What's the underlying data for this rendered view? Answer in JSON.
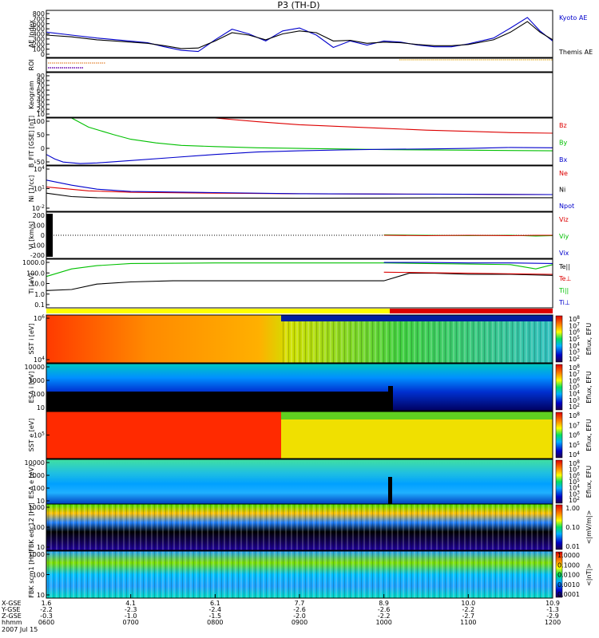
{
  "title": "P3 (TH-D)",
  "colors": {
    "blue": "#0000cc",
    "red": "#dd0000",
    "green": "#00c000",
    "black": "#000000",
    "yellow": "#ffff00"
  },
  "chart_data": {
    "type": "line",
    "panels": [
      {
        "key": "ae",
        "ylabel": "AE Index",
        "yticks": [
          "800",
          "700",
          "600",
          "500",
          "400",
          "300",
          "200",
          "100",
          "0"
        ],
        "ylim": [
          0,
          800
        ],
        "legend": [
          {
            "label": "Kyoto AE",
            "color": "#0000cc"
          },
          {
            "label": "Themis AE",
            "color": "#000000"
          }
        ],
        "series": [
          {
            "color": "#0000cc",
            "x": [
              0.0,
              0.3,
              0.6,
              0.9,
              1.2,
              1.4,
              1.6,
              1.8,
              2.0,
              2.2,
              2.4,
              2.6,
              2.8,
              3.0,
              3.2,
              3.4,
              3.6,
              3.8,
              4.0,
              4.2,
              4.4,
              4.6,
              4.8,
              5.0,
              5.3,
              5.5,
              5.7,
              5.85,
              6.0
            ],
            "y": [
              430,
              380,
              330,
              290,
              250,
              180,
              120,
              100,
              300,
              480,
              400,
              280,
              450,
              500,
              380,
              170,
              280,
              210,
              280,
              260,
              210,
              180,
              180,
              230,
              330,
              500,
              680,
              450,
              280
            ]
          },
          {
            "color": "#000000",
            "x": [
              0.0,
              0.3,
              0.6,
              0.9,
              1.2,
              1.4,
              1.6,
              1.8,
              2.0,
              2.2,
              2.4,
              2.6,
              2.8,
              3.0,
              3.2,
              3.4,
              3.6,
              3.8,
              4.0,
              4.2,
              4.4,
              4.6,
              4.8,
              5.0,
              5.3,
              5.5,
              5.7,
              5.85,
              6.0
            ],
            "y": [
              380,
              350,
              300,
              270,
              240,
              200,
              150,
              160,
              280,
              420,
              380,
              300,
              400,
              450,
              420,
              280,
              290,
              240,
              260,
              250,
              220,
              200,
              200,
              220,
              300,
              430,
              610,
              430,
              300
            ]
          }
        ]
      },
      {
        "key": "roi",
        "ylabel": "ROI",
        "yticks": [],
        "ylim": [
          0,
          1
        ]
      },
      {
        "key": "keogram",
        "ylabel": "Keogram",
        "yticks": [
          "90",
          "80",
          "70",
          "60",
          "50",
          "40",
          "30",
          "20",
          "10"
        ],
        "ylim": [
          10,
          90
        ]
      },
      {
        "key": "bfit",
        "ylabel": "B_FIT [GSE] [nT]",
        "yticks": [
          "100",
          "50",
          "0",
          "-50"
        ],
        "ylim": [
          -55,
          100
        ],
        "legend": [
          {
            "label": "Bz",
            "color": "#dd0000"
          },
          {
            "label": "By",
            "color": "#00c000"
          },
          {
            "label": "Bx",
            "color": "#0000cc"
          }
        ],
        "series": [
          {
            "color": "#dd0000",
            "x": [
              2.0,
              2.5,
              3.0,
              3.5,
              4.0,
              4.5,
              5.0,
              5.5,
              6.0
            ],
            "y": [
              100,
              88,
              78,
              72,
              66,
              60,
              56,
              52,
              50
            ]
          },
          {
            "color": "#00c000",
            "x": [
              0.3,
              0.5,
              0.8,
              1.0,
              1.3,
              1.6,
              2.0,
              2.5,
              3.0,
              3.5,
              4.0,
              5.0,
              6.0
            ],
            "y": [
              100,
              70,
              45,
              30,
              18,
              10,
              6,
              2,
              0,
              -2,
              -4,
              -6,
              -8
            ]
          },
          {
            "color": "#0000cc",
            "x": [
              0.0,
              0.1,
              0.2,
              0.4,
              0.6,
              1.0,
              1.5,
              2.0,
              2.5,
              3.0,
              3.5,
              4.0,
              4.5,
              5.0,
              5.5,
              6.0
            ],
            "y": [
              -20,
              -35,
              -45,
              -50,
              -48,
              -40,
              -30,
              -20,
              -12,
              -8,
              -5,
              -3,
              -2,
              0,
              3,
              2
            ]
          }
        ]
      },
      {
        "key": "ni",
        "ylabel": "Ni [1/cc]",
        "yticks": [
          "10^4",
          "10^1",
          "10^-2"
        ],
        "ylim": [
          -3,
          5
        ],
        "legend": [
          {
            "label": "Ne",
            "color": "#dd0000"
          },
          {
            "label": "Ni",
            "color": "#000000"
          },
          {
            "label": "Npot",
            "color": "#0000cc"
          }
        ],
        "series": [
          {
            "color": "#dd0000",
            "x": [
              0.0,
              0.5,
              1.0,
              2.0,
              3.0,
              4.0,
              5.0,
              6.0
            ],
            "y": [
              1.3,
              0.6,
              0.35,
              0.2,
              0.1,
              0.05,
              0.0,
              -0.05
            ]
          },
          {
            "color": "#000000",
            "x": [
              0.0,
              0.3,
              0.6,
              1.0,
              2.0,
              3.0,
              4.0,
              5.0,
              6.0
            ],
            "y": [
              0.2,
              -0.4,
              -0.6,
              -0.7,
              -0.65,
              -0.7,
              -0.65,
              -0.6,
              -0.6
            ]
          },
          {
            "color": "#0000cc",
            "x": [
              0.0,
              0.3,
              0.6,
              1.0,
              2.0,
              3.0,
              4.0,
              5.0,
              6.0
            ],
            "y": [
              2.5,
              1.6,
              0.9,
              0.5,
              0.3,
              0.1,
              0.05,
              0.0,
              -0.05
            ]
          }
        ]
      },
      {
        "key": "vi",
        "ylabel": "Vi [km/s]",
        "yticks": [
          "200",
          "100",
          "0",
          "-100",
          "-200"
        ],
        "ylim": [
          -300,
          300
        ],
        "legend": [
          {
            "label": "Viz",
            "color": "#dd0000"
          },
          {
            "label": "Viy",
            "color": "#00c000"
          },
          {
            "label": "Vix",
            "color": "#0000cc"
          }
        ],
        "series": [
          {
            "color": "#00c000",
            "x": [
              4.0,
              4.5,
              5.0,
              5.5,
              5.8,
              6.0
            ],
            "y": [
              5,
              0,
              -5,
              0,
              -10,
              -5
            ]
          },
          {
            "color": "#dd0000",
            "x": [
              4.0,
              4.5,
              5.0,
              5.5,
              5.8,
              6.0
            ],
            "y": [
              0,
              -5,
              0,
              -5,
              0,
              0
            ]
          }
        ]
      },
      {
        "key": "ti",
        "ylabel": "Ti [eV]",
        "yticks": [
          "1000.0",
          "100.0",
          "10.0",
          "1.0",
          "0.1"
        ],
        "ylim": [
          -1,
          3.5
        ],
        "legend": [
          {
            "label": "Te||",
            "color": "#000000"
          },
          {
            "label": "Te⊥",
            "color": "#dd0000"
          },
          {
            "label": "Ti||",
            "color": "#00c000"
          },
          {
            "label": "Ti⊥",
            "color": "#0000cc"
          }
        ],
        "series": [
          {
            "color": "#00c000",
            "x": [
              0.0,
              0.3,
              0.6,
              1.0,
              2.0,
              3.0,
              4.0,
              4.5,
              5.0,
              5.5,
              5.8,
              6.0
            ],
            "y": [
              1.9,
              2.6,
              2.9,
              3.1,
              3.15,
              3.15,
              3.15,
              3.1,
              3.05,
              3.0,
              2.6,
              3.0
            ]
          },
          {
            "color": "#0000cc",
            "x": [
              4.0,
              4.5,
              5.0,
              5.5,
              6.0
            ],
            "y": [
              3.2,
              3.2,
              3.15,
              3.15,
              3.1
            ]
          },
          {
            "color": "#000000",
            "x": [
              0.0,
              0.3,
              0.6,
              1.0,
              1.5,
              2.0,
              3.0,
              4.0,
              4.3,
              4.6,
              5.0,
              5.5,
              6.0
            ],
            "y": [
              0.6,
              0.7,
              1.2,
              1.4,
              1.5,
              1.5,
              1.5,
              1.5,
              2.2,
              2.2,
              2.1,
              2.1,
              2.0
            ]
          },
          {
            "color": "#dd0000",
            "x": [
              4.0,
              4.5,
              5.0,
              5.5,
              6.0
            ],
            "y": [
              2.3,
              2.25,
              2.2,
              2.15,
              2.1
            ]
          }
        ]
      },
      {
        "key": "sst_i",
        "ylabel": "SST i [eV]",
        "yticks": [
          "10^6",
          "10^4"
        ],
        "cbar": [
          "10^8",
          "10^7",
          "10^6",
          "10^5",
          "10^4",
          "10^3",
          "10^2"
        ],
        "cbar_label": "Eflux, EFU"
      },
      {
        "key": "esa_i",
        "ylabel": "ESA i [eV]",
        "yticks": [
          "10000",
          "1000",
          "100",
          "10"
        ],
        "cbar": [
          "10^8",
          "10^7",
          "10^6",
          "10^5",
          "10^4",
          "10^3",
          "10^2"
        ],
        "cbar_label": "Eflux, EFU"
      },
      {
        "key": "sst_e",
        "ylabel": "SST e [eV]",
        "yticks": [
          "10^5"
        ],
        "cbar": [
          "10^8",
          "10^7",
          "10^6",
          "10^5",
          "10^4"
        ],
        "cbar_label": "Eflux, EFU"
      },
      {
        "key": "esa_e",
        "ylabel": "ESA e [eV]",
        "yticks": [
          "10000",
          "1000",
          "100",
          "10"
        ],
        "cbar": [
          "10^8",
          "10^7",
          "10^6",
          "10^5",
          "10^4",
          "10^3",
          "10^2"
        ],
        "cbar_label": "Eflux, EFU"
      },
      {
        "key": "fbk1",
        "ylabel": "FBK edc12 [Hz]",
        "yticks": [
          "1000",
          "100",
          "10"
        ],
        "cbar": [
          "1.00",
          "0.10",
          "0.01"
        ],
        "cbar_label": "<|mV/m|>"
      },
      {
        "key": "fbk2",
        "ylabel": "FBK scm1 [Hz]",
        "yticks": [
          "1000",
          "100",
          "10"
        ],
        "cbar": [
          "1.0000",
          "0.1000",
          "0.0100",
          "0.0010",
          "0.0001"
        ],
        "cbar_label": "<|nT|>"
      }
    ],
    "xaxis": {
      "ticks": [
        "0600",
        "0700",
        "0800",
        "0900",
        "1000",
        "1100",
        "1200"
      ],
      "xlim": [
        0,
        6
      ],
      "rows": [
        {
          "label": "X-GSE",
          "values": [
            "1.6",
            "4.1",
            "6.1",
            "7.7",
            "8.9",
            "10.0",
            "10.9"
          ]
        },
        {
          "label": "Y-GSE",
          "values": [
            "-2.2",
            "-2.3",
            "-2.4",
            "-2.6",
            "-2.6",
            "-2.2",
            "-1.3"
          ]
        },
        {
          "label": "Z-GSE",
          "values": [
            "-0.3",
            "-1.0",
            "-1.5",
            "-2.0",
            "-2.2",
            "-2.7",
            "-2.9"
          ]
        },
        {
          "label": "hhmm",
          "values": [
            "0600",
            "0700",
            "0800",
            "0900",
            "1000",
            "1100",
            "1200"
          ]
        }
      ],
      "date": "2007 Jul 15"
    }
  }
}
